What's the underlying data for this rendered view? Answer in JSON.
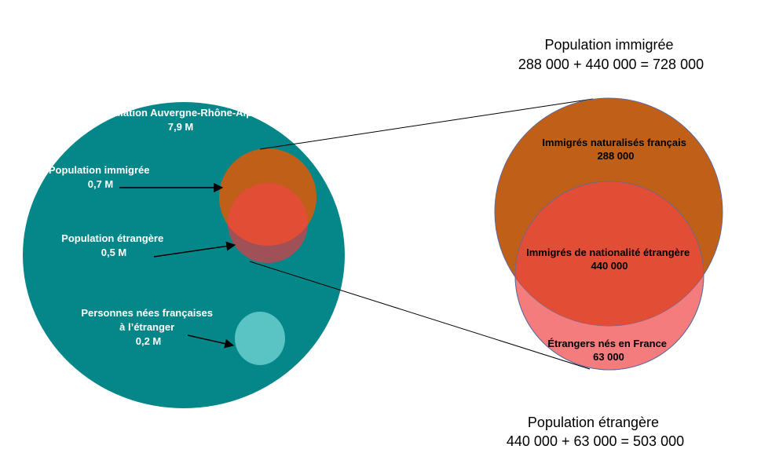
{
  "left_diagram": {
    "region_label": "Population Auvergne-Rhône-Alpes",
    "region_value": "7,9 M",
    "immigrant_label": "Population immigrée",
    "immigrant_value": "0,7 M",
    "foreign_label": "Population étrangère",
    "foreign_value": "0,5 M",
    "born_french_abroad_label_line1": "Personnes nées françaises",
    "born_french_abroad_label_line2": "à l’étranger",
    "born_french_abroad_value": "0,2 M"
  },
  "right_diagram": {
    "naturalized_label": "Immigrés naturalisés français",
    "naturalized_value": "288 000",
    "foreign_nationality_label": "Immigrés de nationalité étrangère",
    "foreign_nationality_value": "440 000",
    "foreigners_born_france_label": "Étrangers nés en France",
    "foreigners_born_france_value": "63 000"
  },
  "summaries": {
    "immigrant_title": "Population immigrée",
    "immigrant_formula": "288 000 + 440 000 = 728 000",
    "foreign_title": "Population étrangère",
    "foreign_formula": "440 000 + 63 000 = 503 000"
  },
  "colors": {
    "region": "#05878a",
    "immigrant": "#c06018",
    "foreign_immigrant": "#e24d35",
    "foreign_born_france": "#f47c7c",
    "born_french_abroad": "#5ac3c4",
    "left_overlap_bottom": "#a05158"
  }
}
